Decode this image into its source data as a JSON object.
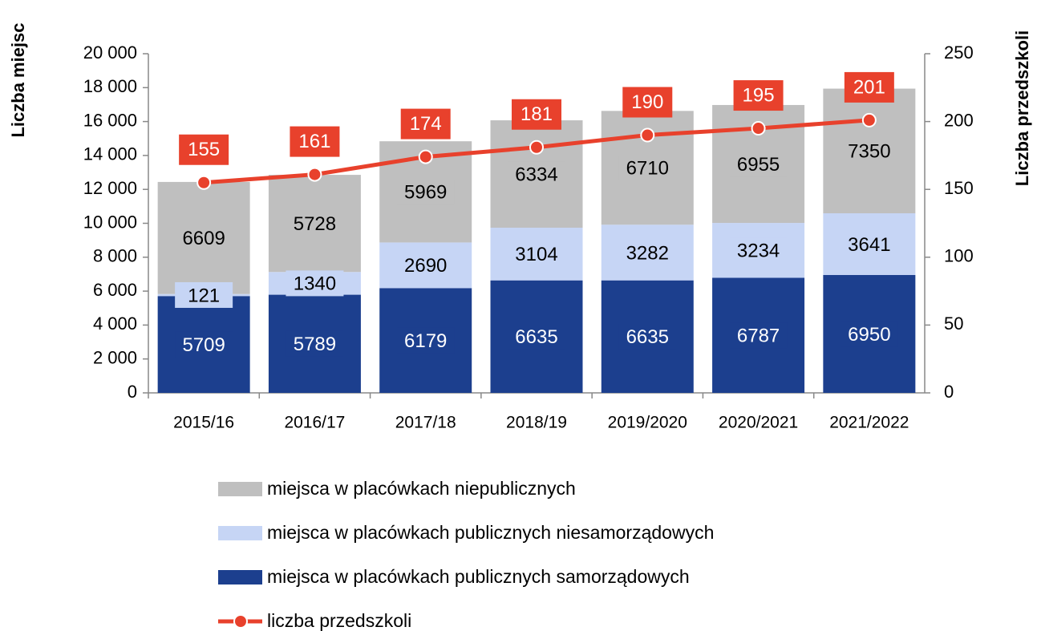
{
  "chart_data": {
    "type": "bar",
    "ylabel": "Liczba miejsc",
    "y2label": "Liczba przedszkoli",
    "categories": [
      "2015/16",
      "2016/17",
      "2017/18",
      "2018/19",
      "2019/2020",
      "2020/2021",
      "2021/2022"
    ],
    "series": [
      {
        "name": "miejsca w placówkach niepublicznych",
        "color": "#bfbfbf",
        "values": [
          6609,
          5728,
          5969,
          6334,
          6710,
          6955,
          7350
        ]
      },
      {
        "name": "miejsca w placówkach publicznych niesamorządowych",
        "color": "#c6d5f5",
        "values": [
          121,
          1340,
          2690,
          3104,
          3282,
          3234,
          3641
        ]
      },
      {
        "name": "miejsca w placówkach publicznych samorządowych",
        "color": "#1c3f8e",
        "values": [
          5709,
          5789,
          6179,
          6635,
          6635,
          6787,
          6950
        ]
      },
      {
        "name": "liczba przedszkoli",
        "color": "#e8412c",
        "type": "line",
        "axis": "y2",
        "values": [
          155,
          161,
          174,
          181,
          190,
          195,
          201
        ]
      }
    ],
    "ylim": [
      0,
      20000
    ],
    "yticks": [
      0,
      {
        "value": 2000,
        "label": "2 000"
      },
      {
        "value": 4000,
        "label": "4 000"
      },
      {
        "value": 6000,
        "label": "6 000"
      },
      {
        "value": 8000,
        "label": "8 000"
      },
      {
        "value": 10000,
        "label": "10 000"
      },
      {
        "value": 12000,
        "label": "12 000"
      },
      {
        "value": 14000,
        "label": "14 000"
      },
      {
        "value": 16000,
        "label": "16 000"
      },
      {
        "value": 18000,
        "label": "18 000"
      },
      {
        "value": 20000,
        "label": "20 000"
      }
    ],
    "y2lim": [
      0,
      250
    ],
    "y2ticks": [
      0,
      50,
      100,
      150,
      200,
      250
    ],
    "legend": "bottom"
  }
}
